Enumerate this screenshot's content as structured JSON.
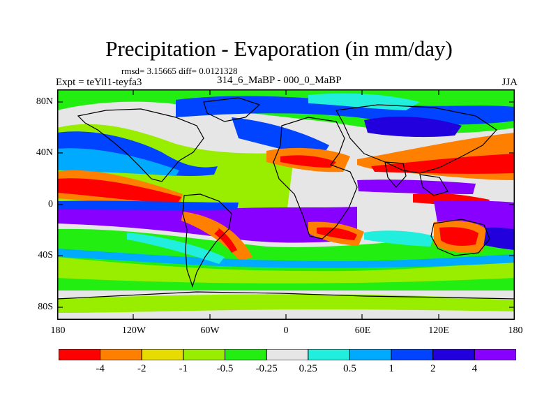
{
  "title": "Precipitation - Evaporation (in mm/day)",
  "stats": "rmsd= 3.15665 diff= 0.0121328",
  "experiment": "Expt = teYil1-teyfa3",
  "case_label": "314_6_MaBP - 000_0_MaBP",
  "season": "JJA",
  "axes": {
    "y_ticks": [
      "80N",
      "40N",
      "0",
      "40S",
      "80S"
    ],
    "x_ticks": [
      "180",
      "120W",
      "60W",
      "0",
      "60E",
      "120E",
      "180"
    ]
  },
  "colorbar": {
    "levels": [
      "-4",
      "-2",
      "-1",
      "-0.5",
      "-0.25",
      "0.25",
      "0.5",
      "1",
      "2",
      "4"
    ],
    "colors": [
      "#ff0000",
      "#ff7f00",
      "#e6dc00",
      "#99ee00",
      "#22ee11",
      "#e6e6e6",
      "#22eedd",
      "#00aaff",
      "#0044ff",
      "#2200dd",
      "#8800ff"
    ]
  },
  "chart_data": {
    "type": "heatmap",
    "title": "Precipitation - Evaporation (in mm/day)",
    "units": "mm/day",
    "lon_range": [
      -180,
      180
    ],
    "lat_range": [
      -90,
      90
    ],
    "x_tick_labels": [
      "180",
      "120W",
      "60W",
      "0",
      "60E",
      "120E",
      "180"
    ],
    "y_tick_labels": [
      "80N",
      "40N",
      "0",
      "40S",
      "80S"
    ],
    "contour_levels": [
      -4,
      -2,
      -1,
      -0.5,
      -0.25,
      0.25,
      0.5,
      1,
      2,
      4
    ],
    "grid": false
  }
}
